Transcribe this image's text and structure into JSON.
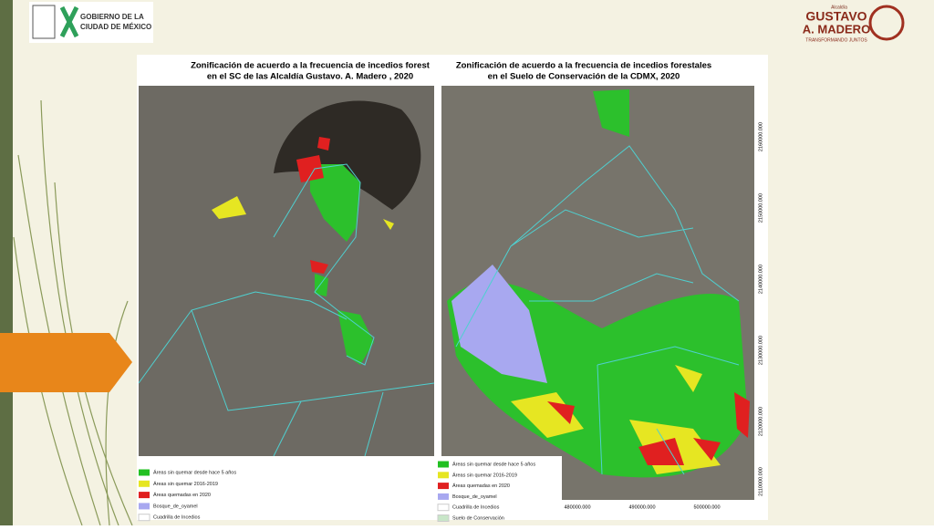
{
  "header": {
    "left_logo": {
      "line1": "GOBIERNO DE LA",
      "line2": "CIUDAD DE MÉXICO"
    },
    "right_logo": {
      "small": "Alcaldía",
      "name1": "GUSTAVO",
      "name2": "A. MADERO",
      "tagline": "TRANSFORMANDO JUNTOS"
    }
  },
  "maps": [
    {
      "title": [
        "Zonificación de acuerdo a la frecuencia de incedios forest",
        "en el SC de las Alcaldía Gustavo. A. Madero , 2020"
      ],
      "legend": [
        "Áreas sin quemar desde hace 5 años",
        "Áreas sin quemar 2016-2019",
        "Áreas quemadas en 2020",
        "Bosque_de_oyamel",
        "Cuadrilla de Incedios"
      ]
    },
    {
      "title": [
        "Zonificación de acuerdo a la frecuencia de incedios forestales",
        "en el Suelo de Conservación de la CDMX, 2020"
      ],
      "y_labels": [
        "2160000.000",
        "2150000.000",
        "2140000.000",
        "2130000.000",
        "2120000.000",
        "2110000.000"
      ],
      "x_labels": [
        "480000.000",
        "490000.000",
        "500000.000"
      ],
      "legend": [
        "Áreas sin quemar desde hace 5 años",
        "Áreas sin quemar 2016-2019",
        "Áreas quemadas en 2020",
        "Bosque_de_oyamel",
        "Cuadrilla de Incedios",
        "Suelo de Conservación"
      ]
    }
  ]
}
